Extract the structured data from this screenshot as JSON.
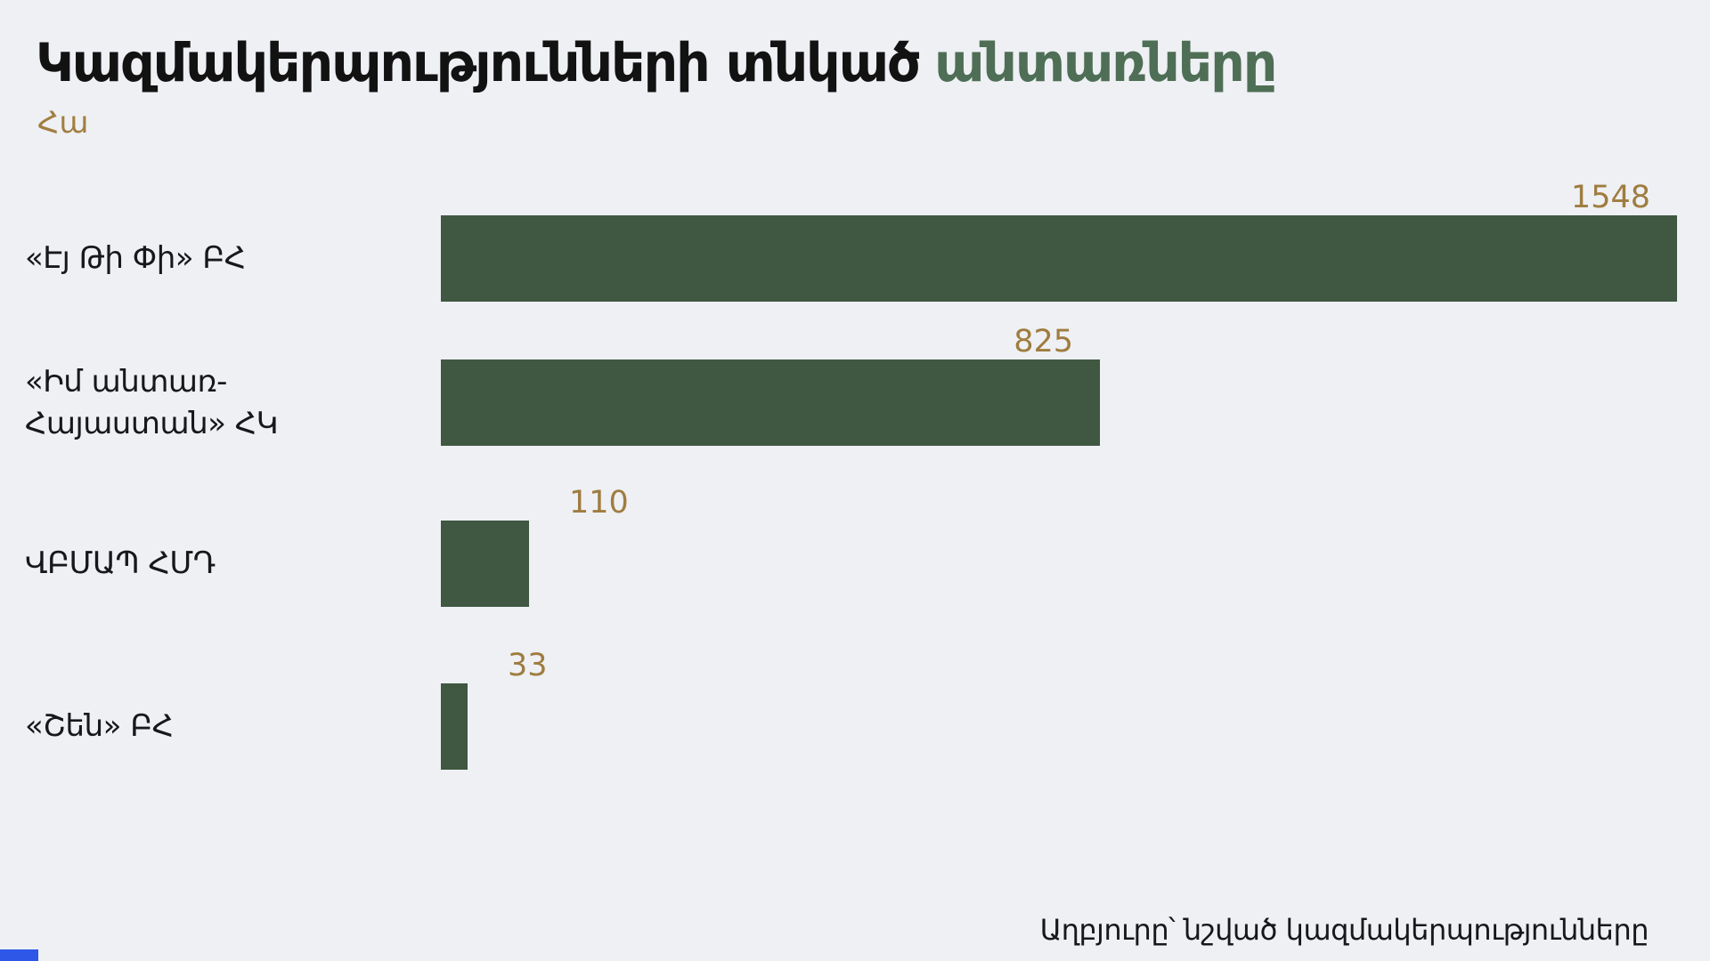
{
  "title": {
    "black": "Կազմակերպությունների տնկած",
    "green": "անտառները"
  },
  "unit_label": "Հա",
  "bars": [
    {
      "label": "«Էյ Թի Փի» ԲՀ",
      "value": "1548"
    },
    {
      "label": "«Իմ անտառ-Հայաստան» ՀԿ",
      "value": "825"
    },
    {
      "label": "ՎԲՄԱՊ ՀՄԴ",
      "value": "110"
    },
    {
      "label": "«Շեն» ԲՀ",
      "value": "33"
    }
  ],
  "source": "Աղբյուրը՝ նշված կազմակերպությունները",
  "colors": {
    "background": "#eef0f4",
    "bar_green": "#405741",
    "title_green": "#4e6e55",
    "accent_brown": "#9f7c3f",
    "brand_blue": "#2e56e7",
    "text_black": "#17181a"
  },
  "chart_data": {
    "type": "bar",
    "orientation": "horizontal",
    "title": "Կազմակերպությունների տնկած անտառները",
    "title_highlight": "անտառները",
    "unit": "Հա",
    "categories": [
      "«Էյ Թի Փի» ԲՀ",
      "«Իմ անտառ-Հայաստան» ՀԿ",
      "ՎԲՄԱՊ ՀՄԴ",
      "«Շեն» ԲՀ"
    ],
    "values": [
      1548,
      825,
      110,
      33
    ],
    "xlim": [
      0,
      1548
    ],
    "grid": false,
    "legend": false,
    "value_labels_shown": true,
    "source": "Աղբյուրը՝ նշված կազմակերպությունները"
  }
}
